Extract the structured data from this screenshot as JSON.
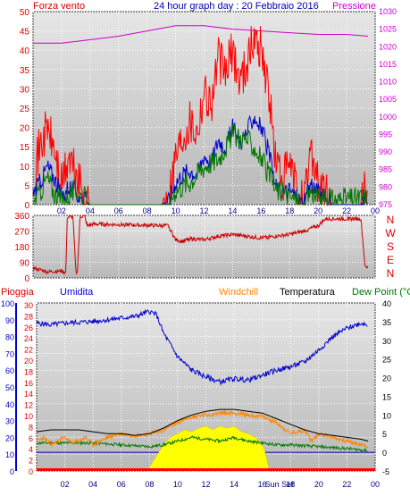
{
  "chart_data": [
    {
      "type": "line",
      "title": "24 hour graph day : 20 Febbraio 2016",
      "left_label": "Forza vento",
      "right_label": "Pressione",
      "x_ticks": [
        "02",
        "04",
        "06",
        "08",
        "10",
        "12",
        "14",
        "16",
        "18",
        "20",
        "22",
        "00"
      ],
      "left_ticks": [
        "0",
        "5",
        "10",
        "15",
        "20",
        "25",
        "30",
        "35",
        "40",
        "45",
        "50"
      ],
      "right_ticks": [
        "975",
        "980",
        "985",
        "990",
        "995",
        "1000",
        "1005",
        "1010",
        "1015",
        "1020",
        "1025",
        "1030"
      ],
      "ylim_left": [
        0,
        50
      ],
      "ylim_right": [
        975,
        1030
      ],
      "colors": {
        "gust": "#ff0000",
        "speed": "#0000cc",
        "green": "#007700",
        "pressure": "#cc00cc"
      },
      "series": [
        {
          "key": "pressure",
          "axis": "right",
          "x": [
            0,
            2,
            3,
            6,
            8,
            10,
            12,
            14,
            16,
            18,
            20,
            22,
            23.5
          ],
          "y": [
            1021,
            1021,
            1021.5,
            1023,
            1024.5,
            1026,
            1026,
            1025,
            1024.5,
            1024,
            1023.5,
            1023.5,
            1023
          ]
        },
        {
          "key": "gust",
          "axis": "left",
          "x": [
            0,
            0.5,
            1,
            1.5,
            2,
            2.5,
            3,
            3.5,
            4,
            4.5,
            5,
            6,
            7,
            8,
            9,
            9.5,
            10,
            10.5,
            11,
            11.5,
            12,
            12.5,
            13,
            13.5,
            14,
            14.5,
            15,
            15.5,
            16,
            16.5,
            17,
            17.5,
            18,
            18.5,
            19,
            19.5,
            20,
            21,
            22,
            23,
            23.5
          ],
          "y": [
            8,
            15,
            20,
            14,
            5,
            12,
            8,
            3,
            0,
            0,
            0,
            0,
            0,
            0,
            0,
            2,
            13,
            18,
            22,
            19,
            30,
            26,
            38,
            34,
            40,
            32,
            37,
            43,
            41,
            30,
            12,
            6,
            10,
            4,
            0,
            15,
            6,
            0,
            0,
            0,
            6
          ]
        },
        {
          "key": "speed",
          "axis": "left",
          "x": [
            0,
            0.5,
            1,
            1.5,
            2,
            2.5,
            3,
            3.5,
            4,
            5,
            6,
            7,
            8,
            9,
            9.5,
            10,
            10.5,
            11,
            11.5,
            12,
            12.5,
            13,
            13.5,
            14,
            14.5,
            15,
            15.5,
            16,
            16.5,
            17,
            17.5,
            18,
            18.5,
            19,
            19.5,
            20,
            21,
            22,
            23,
            23.5
          ],
          "y": [
            3,
            6,
            10,
            7,
            2,
            5,
            3,
            1,
            0,
            0,
            0,
            0,
            0,
            0,
            1,
            6,
            8,
            9,
            8,
            13,
            11,
            17,
            15,
            20,
            16,
            19,
            23,
            20,
            14,
            5,
            3,
            4,
            2,
            0,
            6,
            3,
            0,
            0,
            0,
            3
          ]
        },
        {
          "key": "green",
          "axis": "left",
          "x": [
            0,
            1,
            1.5,
            2,
            3,
            4,
            9.5,
            10,
            11,
            12,
            13,
            14,
            15,
            15.5,
            16,
            17,
            18,
            19,
            19.5,
            20,
            23.5
          ],
          "y": [
            0,
            7,
            3,
            1,
            4,
            0,
            0,
            4,
            6,
            10,
            12,
            18,
            17,
            15,
            12,
            4,
            2,
            0,
            4,
            1,
            2
          ]
        }
      ]
    },
    {
      "type": "line",
      "left_ticks": [
        "0",
        "90",
        "180",
        "270",
        "360"
      ],
      "right_label": "N W S E N",
      "ylim": [
        0,
        360
      ],
      "colors": {
        "direction": "#cc0000"
      },
      "series": [
        {
          "key": "direction",
          "x": [
            0,
            0.3,
            0.6,
            1,
            2,
            2.3,
            2.4,
            2.6,
            2.8,
            3.0,
            3.1,
            3.3,
            3.6,
            3.8,
            4.2,
            9.5,
            10,
            10.5,
            11,
            12,
            13,
            14,
            15,
            16,
            17,
            18,
            19,
            20,
            20.5,
            21,
            23,
            23.3,
            23.5
          ],
          "y": [
            60,
            50,
            45,
            35,
            40,
            30,
            350,
            350,
            350,
            40,
            20,
            350,
            360,
            300,
            310,
            300,
            220,
            210,
            225,
            220,
            240,
            250,
            240,
            230,
            240,
            250,
            270,
            300,
            340,
            340,
            340,
            60,
            60
          ]
        }
      ]
    },
    {
      "type": "line",
      "labels": [
        "Pioggia",
        "Umidita",
        "Windchill",
        "Temperatura",
        "Dew Point (°C"
      ],
      "x_ticks": [
        "02",
        "04",
        "06",
        "08",
        "10",
        "12",
        "14",
        "16",
        "18",
        "20",
        "22",
        "00"
      ],
      "special_tick": "Sun Set",
      "ylim_humidity": [
        0,
        100
      ],
      "ylim_temp": [
        -5,
        40
      ],
      "humidity_ticks": [
        "0",
        "10",
        "20",
        "30",
        "40",
        "50",
        "60",
        "70",
        "80",
        "90",
        "100"
      ],
      "rain_ticks": [
        "0",
        "2",
        "4",
        "6",
        "8",
        "10",
        "12",
        "14",
        "16",
        "18",
        "20",
        "22",
        "24",
        "26",
        "28",
        "30"
      ],
      "temp_ticks": [
        "-5",
        "0",
        "5",
        "10",
        "15",
        "20",
        "25",
        "30",
        "35",
        "40"
      ],
      "colors": {
        "humidity": "#0000cc",
        "temperature": "#000000",
        "windchill": "#ff8800",
        "dewpoint": "#007700",
        "solar": "#ffff00",
        "rain": "#ff0000"
      },
      "series": [
        {
          "key": "humidity",
          "axis": "humidity",
          "x": [
            0,
            1,
            2,
            4,
            6,
            7,
            8,
            8.5,
            9,
            9.5,
            10,
            11,
            12,
            13,
            14,
            15,
            16,
            17,
            18,
            19,
            20,
            21,
            22,
            23,
            23.5
          ],
          "y": [
            88,
            87,
            88,
            89,
            91,
            92,
            95,
            93,
            82,
            75,
            68,
            60,
            56,
            53,
            55,
            54,
            57,
            60,
            62,
            65,
            72,
            80,
            85,
            88,
            87
          ]
        },
        {
          "key": "temperature",
          "axis": "temp",
          "x": [
            0,
            1,
            2,
            3,
            4,
            5,
            6,
            7,
            8,
            9,
            10,
            11,
            12,
            13,
            14,
            15,
            16,
            17,
            18,
            19,
            20,
            21,
            22,
            23,
            23.5
          ],
          "y": [
            5.5,
            6,
            6,
            6,
            5.5,
            5,
            5,
            4.5,
            5,
            6.5,
            8.5,
            10,
            11,
            11.5,
            11.5,
            11,
            10.5,
            9,
            7.5,
            6,
            5,
            4.5,
            4,
            3.5,
            3
          ]
        },
        {
          "key": "windchill",
          "axis": "temp",
          "x": [
            0,
            0.5,
            1,
            1.5,
            2,
            2.5,
            3,
            3.5,
            4,
            5,
            6,
            7,
            8,
            9,
            10,
            11,
            12,
            13,
            14,
            15,
            16,
            17,
            18,
            19,
            19.5,
            20,
            21,
            22,
            23,
            23.5
          ],
          "y": [
            3,
            4,
            2,
            3,
            4,
            2.5,
            3,
            4,
            2,
            4,
            5,
            4.5,
            5,
            6,
            8,
            9.5,
            10,
            10.5,
            10.5,
            10,
            9.5,
            8,
            5,
            6,
            3,
            5,
            4,
            3,
            2,
            1.5
          ]
        },
        {
          "key": "dewpoint",
          "axis": "temp",
          "x": [
            0,
            2,
            4,
            6,
            8,
            9,
            10,
            11,
            12,
            13,
            14,
            15,
            16,
            17,
            18,
            20,
            22,
            23.5
          ],
          "y": [
            2.5,
            2.5,
            2.5,
            2,
            1.5,
            2,
            3,
            4,
            3.5,
            3,
            4,
            3,
            2.5,
            2,
            2,
            1.5,
            1,
            0.5
          ]
        },
        {
          "key": "solar",
          "axis": "temp",
          "x": [
            7.8,
            8,
            8.5,
            9,
            9.5,
            10,
            10.5,
            11,
            11.5,
            12,
            12.5,
            13,
            13.5,
            14,
            14.5,
            15,
            15.5,
            16,
            16.2,
            16.5
          ],
          "y": [
            -5,
            -4,
            -1,
            2,
            4,
            5,
            6,
            5.5,
            6.5,
            7,
            6,
            7,
            6.5,
            7,
            5.5,
            5,
            4,
            2,
            0,
            -5
          ]
        }
      ]
    }
  ]
}
